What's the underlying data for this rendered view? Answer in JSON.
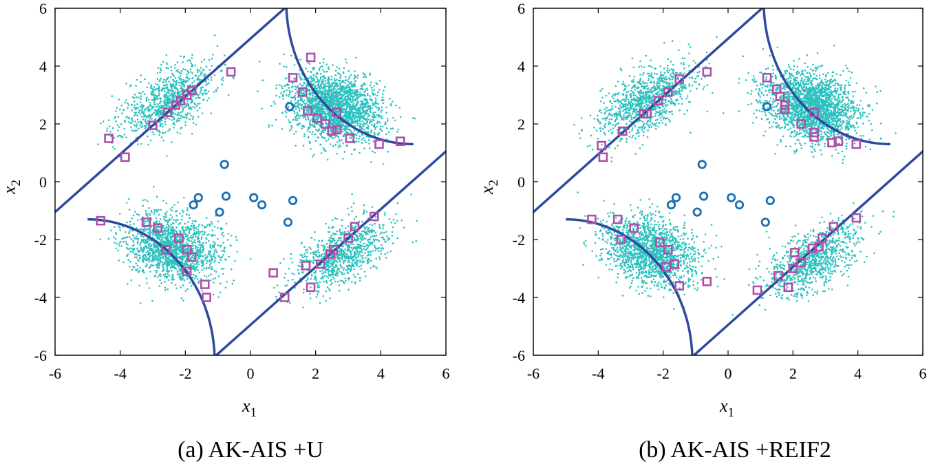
{
  "figure": {
    "description": "Two scatter panels showing AK-AIS sampling with limit-state boundary",
    "colors": {
      "boundary": "#2e4a9e",
      "mcmc": "#2cc1bf",
      "circle": "#1a6fb3",
      "square": "#b04fa8",
      "axis": "#000000"
    }
  },
  "chart_data": [
    {
      "type": "scatter",
      "caption": "(a) AK-AIS +U",
      "xlabel": "x",
      "xlabel_sub": "1",
      "ylabel": "x",
      "ylabel_sub": "2",
      "xlim": [
        -6,
        6
      ],
      "ylim": [
        -6,
        6
      ],
      "xticks": [
        "-6",
        "-4",
        "-2",
        "0",
        "2",
        "4",
        "6"
      ],
      "yticks": [
        "6",
        "4",
        "2",
        "0",
        "-2",
        "-4",
        "-6"
      ],
      "initial_samples_circles": [
        [
          1.2,
          2.6
        ],
        [
          -0.8,
          0.6
        ],
        [
          -1.6,
          -0.55
        ],
        [
          -0.75,
          -0.5
        ],
        [
          0.1,
          -0.55
        ],
        [
          1.3,
          -0.65
        ],
        [
          -1.75,
          -0.8
        ],
        [
          0.35,
          -0.8
        ],
        [
          -0.95,
          -1.05
        ],
        [
          1.15,
          -1.4
        ]
      ],
      "added_samples_squares": [
        [
          1.85,
          4.3
        ],
        [
          -0.6,
          3.8
        ],
        [
          1.3,
          3.6
        ],
        [
          -1.8,
          3.15
        ],
        [
          1.6,
          3.1
        ],
        [
          -1.95,
          3.0
        ],
        [
          -2.15,
          2.8
        ],
        [
          -2.3,
          2.65
        ],
        [
          1.75,
          2.45
        ],
        [
          -2.55,
          2.4
        ],
        [
          2.65,
          2.4
        ],
        [
          2.05,
          2.2
        ],
        [
          2.3,
          2.0
        ],
        [
          -3.0,
          1.95
        ],
        [
          2.65,
          1.8
        ],
        [
          2.5,
          1.75
        ],
        [
          3.05,
          1.5
        ],
        [
          -4.35,
          1.5
        ],
        [
          4.6,
          1.4
        ],
        [
          3.95,
          1.3
        ],
        [
          -3.85,
          0.85
        ],
        [
          -4.6,
          -1.35
        ],
        [
          -3.2,
          -1.4
        ],
        [
          -2.85,
          -1.6
        ],
        [
          3.2,
          -1.55
        ],
        [
          3.8,
          -1.2
        ],
        [
          -2.2,
          -1.95
        ],
        [
          3.0,
          -1.95
        ],
        [
          -2.6,
          -2.35
        ],
        [
          -1.95,
          -2.35
        ],
        [
          2.55,
          -2.35
        ],
        [
          -1.8,
          -2.6
        ],
        [
          2.45,
          -2.5
        ],
        [
          2.15,
          -2.85
        ],
        [
          1.7,
          -2.9
        ],
        [
          -1.95,
          -3.1
        ],
        [
          0.7,
          -3.15
        ],
        [
          -1.4,
          -3.55
        ],
        [
          1.85,
          -3.65
        ],
        [
          -1.35,
          -4.0
        ],
        [
          1.05,
          -4.0
        ]
      ],
      "clusters": [
        {
          "center": [
            2.6,
            2.6
          ],
          "spread": [
            0.75,
            0.55
          ],
          "angle_deg": -28,
          "count": 2200
        },
        {
          "center": [
            -2.4,
            -2.3
          ],
          "spread": [
            0.75,
            0.55
          ],
          "angle_deg": -28,
          "count": 1600
        },
        {
          "center": [
            -2.5,
            2.8
          ],
          "spread": [
            0.85,
            0.45
          ],
          "angle_deg": 38,
          "count": 900
        },
        {
          "center": [
            2.8,
            -2.5
          ],
          "spread": [
            0.85,
            0.45
          ],
          "angle_deg": 38,
          "count": 900
        }
      ],
      "boundary_lines": [
        [
          [
            -6,
            -1.05
          ],
          [
            1.05,
            6
          ]
        ],
        [
          [
            -1.05,
            -6
          ],
          [
            6,
            1.05
          ]
        ]
      ],
      "boundary_curves": [
        {
          "origin": [
            5.0,
            6.2
          ],
          "rx": 3.9,
          "ry": 4.9,
          "t_start_deg": 180,
          "t_end_deg": 270
        },
        {
          "origin": [
            -5.0,
            -6.2
          ],
          "rx": 3.9,
          "ry": 4.9,
          "t_start_deg": 0,
          "t_end_deg": 90
        }
      ]
    },
    {
      "type": "scatter",
      "caption": "(b) AK-AIS +REIF2",
      "xlabel": "x",
      "xlabel_sub": "1",
      "ylabel": "x",
      "ylabel_sub": "2",
      "xlim": [
        -6,
        6
      ],
      "ylim": [
        -6,
        6
      ],
      "xticks": [
        "-6",
        "-4",
        "-2",
        "0",
        "2",
        "4",
        "6"
      ],
      "yticks": [
        "6",
        "4",
        "2",
        "0",
        "-2",
        "-4",
        "-6"
      ],
      "initial_samples_circles": [
        [
          1.2,
          2.6
        ],
        [
          -0.8,
          0.6
        ],
        [
          -1.6,
          -0.55
        ],
        [
          -0.75,
          -0.5
        ],
        [
          0.1,
          -0.55
        ],
        [
          1.3,
          -0.65
        ],
        [
          -1.75,
          -0.8
        ],
        [
          0.35,
          -0.8
        ],
        [
          -0.95,
          -1.05
        ],
        [
          1.15,
          -1.4
        ]
      ],
      "added_samples_squares": [
        [
          -0.65,
          3.8
        ],
        [
          1.2,
          3.6
        ],
        [
          -1.5,
          3.55
        ],
        [
          1.5,
          3.2
        ],
        [
          -1.85,
          3.1
        ],
        [
          1.6,
          2.95
        ],
        [
          -2.15,
          2.8
        ],
        [
          1.75,
          2.65
        ],
        [
          1.75,
          2.5
        ],
        [
          -2.5,
          2.35
        ],
        [
          -2.6,
          2.35
        ],
        [
          2.65,
          2.4
        ],
        [
          2.25,
          2.0
        ],
        [
          -3.25,
          1.75
        ],
        [
          2.65,
          1.7
        ],
        [
          2.65,
          1.55
        ],
        [
          3.4,
          1.4
        ],
        [
          3.2,
          1.35
        ],
        [
          3.95,
          1.3
        ],
        [
          -3.9,
          1.25
        ],
        [
          -3.85,
          0.85
        ],
        [
          -4.2,
          -1.3
        ],
        [
          -3.4,
          -1.3
        ],
        [
          3.25,
          -1.55
        ],
        [
          -2.9,
          -1.6
        ],
        [
          3.95,
          -1.25
        ],
        [
          -3.3,
          -2.0
        ],
        [
          2.9,
          -1.95
        ],
        [
          -2.1,
          -2.1
        ],
        [
          -1.85,
          -2.35
        ],
        [
          2.8,
          -2.25
        ],
        [
          2.6,
          -2.3
        ],
        [
          2.05,
          -2.45
        ],
        [
          2.25,
          -2.8
        ],
        [
          -1.65,
          -2.85
        ],
        [
          -1.9,
          -2.95
        ],
        [
          2.0,
          -3.0
        ],
        [
          1.55,
          -3.25
        ],
        [
          -0.65,
          -3.45
        ],
        [
          -1.5,
          -3.6
        ],
        [
          1.85,
          -3.65
        ],
        [
          0.9,
          -3.75
        ]
      ],
      "clusters": [
        {
          "center": [
            2.6,
            2.6
          ],
          "spread": [
            0.75,
            0.55
          ],
          "angle_deg": -28,
          "count": 2200
        },
        {
          "center": [
            -2.4,
            -2.4
          ],
          "spread": [
            0.75,
            0.55
          ],
          "angle_deg": -28,
          "count": 1600
        },
        {
          "center": [
            -2.5,
            2.8
          ],
          "spread": [
            0.85,
            0.45
          ],
          "angle_deg": 38,
          "count": 1000
        },
        {
          "center": [
            2.6,
            -2.7
          ],
          "spread": [
            0.85,
            0.45
          ],
          "angle_deg": 38,
          "count": 900
        }
      ],
      "boundary_lines": [
        [
          [
            -6,
            -1.05
          ],
          [
            1.05,
            6
          ]
        ],
        [
          [
            -1.05,
            -6
          ],
          [
            6,
            1.05
          ]
        ]
      ],
      "boundary_curves": [
        {
          "origin": [
            5.0,
            6.2
          ],
          "rx": 3.9,
          "ry": 4.9,
          "t_start_deg": 180,
          "t_end_deg": 270
        },
        {
          "origin": [
            -5.0,
            -6.2
          ],
          "rx": 3.9,
          "ry": 4.9,
          "t_start_deg": 0,
          "t_end_deg": 90
        }
      ]
    }
  ]
}
